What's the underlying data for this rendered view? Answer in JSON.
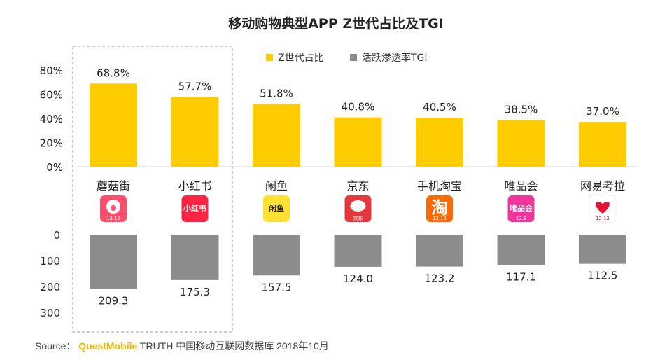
{
  "chart_data": {
    "type": "bar",
    "title": "移动购物典型APP Z世代占比及TGI",
    "legend_position": "top",
    "categories": [
      "蘑菇街",
      "小红书",
      "闲鱼",
      "京东",
      "手机淘宝",
      "唯品会",
      "网易考拉"
    ],
    "highlighted_categories": [
      "蘑菇街",
      "小红书"
    ],
    "series": [
      {
        "name": "Z世代占比",
        "color": "#FFCC00",
        "values": [
          68.8,
          57.7,
          51.8,
          40.8,
          40.5,
          38.5,
          37.0
        ],
        "value_labels": [
          "68.8%",
          "57.7%",
          "51.8%",
          "40.8%",
          "40.5%",
          "38.5%",
          "37.0%"
        ],
        "ylim": [
          0,
          80
        ],
        "ticks": [
          0,
          20,
          40,
          60,
          80
        ],
        "tick_labels": [
          "0%",
          "20%",
          "40%",
          "60%",
          "80%"
        ]
      },
      {
        "name": "活跃渗透率TGI",
        "color": "#8C8C8C",
        "values": [
          209.3,
          175.3,
          157.5,
          124.0,
          123.2,
          117.1,
          112.5
        ],
        "value_labels": [
          "209.3",
          "175.3",
          "157.5",
          "124.0",
          "123.2",
          "117.1",
          "112.5"
        ],
        "ylim": [
          0,
          300
        ],
        "ticks": [
          0,
          100,
          200,
          300
        ],
        "tick_labels": [
          "0",
          "100",
          "200",
          "300"
        ]
      }
    ],
    "app_icons": [
      {
        "name": "mogujie-icon",
        "bg": "#FF4E6C",
        "text": "",
        "subtext": "12.12"
      },
      {
        "name": "xiaohongshu-icon",
        "bg": "#FF2442",
        "text": "小红书",
        "subtext": ""
      },
      {
        "name": "xianyu-icon",
        "bg": "#FFE033",
        "text": "闲鱼",
        "subtext": ""
      },
      {
        "name": "jingdong-icon",
        "bg": "#E4393C",
        "text": "",
        "subtext": "京东"
      },
      {
        "name": "taobao-icon",
        "bg": "#FF6A00",
        "text": "淘",
        "subtext": "12.12"
      },
      {
        "name": "vipshop-icon",
        "bg": "#F0359C",
        "text": "唯品会",
        "subtext": "12.8"
      },
      {
        "name": "kaola-icon",
        "bg": "#FFFFFF",
        "text": "",
        "subtext": "12.12"
      }
    ]
  },
  "source": {
    "prefix": "Source：",
    "brand": "QuestMobile",
    "rest": "TRUTH 中国移动互联网数据库 2018年10月"
  }
}
